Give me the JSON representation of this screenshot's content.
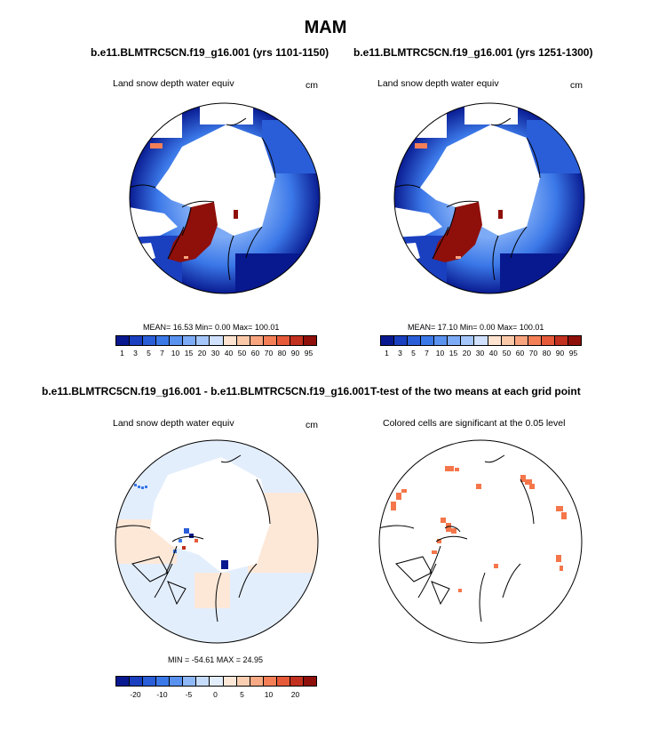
{
  "page_title": "MAM",
  "panels": [
    {
      "title": "b.e11.BLMTRC5CN.f19_g16.001 (yrs 1101-1150)",
      "left_label": "Land snow depth water equiv",
      "right_label": "cm",
      "stats": "MEAN=  16.53  Min=   0.00  Max= 100.01",
      "colorbar_labels": [
        "1",
        "3",
        "5",
        "7",
        "10",
        "15",
        "20",
        "30",
        "40",
        "50",
        "60",
        "70",
        "80",
        "90",
        "95"
      ]
    },
    {
      "title": "b.e11.BLMTRC5CN.f19_g16.001 (yrs 1251-1300)",
      "left_label": "Land snow depth water equiv",
      "right_label": "cm",
      "stats": "MEAN=  17.10  Min=   0.00  Max= 100.01",
      "colorbar_labels": [
        "1",
        "3",
        "5",
        "7",
        "10",
        "15",
        "20",
        "30",
        "40",
        "50",
        "60",
        "70",
        "80",
        "90",
        "95"
      ]
    },
    {
      "title": "b.e11.BLMTRC5CN.f19_g16.001 - b.e11.BLMTRC5CN.f19_g16.001",
      "left_label": "Land snow depth water equiv",
      "right_label": "cm",
      "stats": "MIN = -54.61  MAX =  24.95",
      "colorbar_labels": [
        "-20",
        "-10",
        "-5",
        "0",
        "5",
        "10",
        "20"
      ]
    },
    {
      "title": "T-test of the two means at each grid point",
      "left_label": "Colored cells are significant at the 0.05 level",
      "right_label": ""
    }
  ],
  "colors": {
    "abs_scale": [
      "#08198f",
      "#1a3fbf",
      "#2a5ed8",
      "#3b78e8",
      "#5a92f0",
      "#7eabf5",
      "#a4c6f9",
      "#cfe1fc",
      "#fde3d0",
      "#fbc8a8",
      "#f8a47e",
      "#f47f57",
      "#e65a3a",
      "#c2301f",
      "#8f0f0a"
    ],
    "diff_scale": [
      "#08198f",
      "#1a3fbf",
      "#2a5ed8",
      "#3b78e8",
      "#5a92f0",
      "#8fb8f6",
      "#c6dcfb",
      "#e3eefd",
      "#fde8d8",
      "#fbcfb2",
      "#f8aa84",
      "#f47f57",
      "#e65a3a",
      "#c2301f",
      "#8f0f0a"
    ],
    "significant": "#f4764a"
  }
}
